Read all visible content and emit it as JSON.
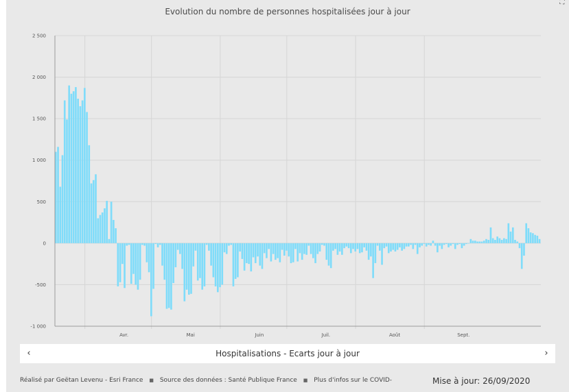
{
  "header": {
    "title": "Evolution du nombre de personnes hospitalisées jour à jour"
  },
  "expand_icon": "expand-icon",
  "nav": {
    "label": "Hospitalisations - Ecarts jour à jour",
    "prev": "‹",
    "next": "›"
  },
  "footer": {
    "author": "Réalisé par Geëtan Levenu - Esri France",
    "source": "Source des données : Santé Publique France",
    "more": "Plus d'infos sur le COVID-",
    "separator": "■"
  },
  "update": "Mise à jour: 26/09/2020",
  "colors": {
    "bar": "#7fdcfa",
    "grid": "#d6d6d6",
    "axis": "#9a9a9a",
    "background": "#e9e9e9"
  },
  "chart_data": {
    "type": "bar",
    "title": "Evolution du nombre de personnes hospitalisées jour à jour",
    "xlabel": "",
    "ylabel": "",
    "ylim": [
      -1000,
      2500
    ],
    "y_ticks": [
      2500,
      2000,
      1500,
      1000,
      500,
      0,
      -500,
      -1000
    ],
    "y_tick_labels": [
      "2 500",
      "2 000",
      "1 500",
      "1 000",
      "500",
      "0",
      "-500",
      "-1 000"
    ],
    "x_month_labels": [
      {
        "label": "Avr.",
        "index": 13
      },
      {
        "label": "Mai",
        "index": 43
      },
      {
        "label": "Juin",
        "index": 74
      },
      {
        "label": "Juil.",
        "index": 104
      },
      {
        "label": "Août",
        "index": 135
      },
      {
        "label": "Sept.",
        "index": 166
      }
    ],
    "series": [
      {
        "name": "Hospitalisations - Ecarts jour à jour",
        "values": [
          1100,
          1160,
          680,
          1060,
          1720,
          1490,
          1900,
          1800,
          1830,
          1880,
          1740,
          1650,
          1720,
          1870,
          1580,
          1180,
          720,
          760,
          830,
          300,
          340,
          370,
          420,
          510,
          50,
          500,
          280,
          180,
          -520,
          -470,
          -250,
          -540,
          -30,
          -20,
          -490,
          -370,
          -500,
          -560,
          -440,
          -20,
          -30,
          -230,
          -350,
          -880,
          -550,
          -10,
          -50,
          -20,
          -270,
          -440,
          -790,
          -780,
          -800,
          -480,
          -290,
          -80,
          -130,
          -310,
          -700,
          -560,
          -620,
          -610,
          -280,
          -90,
          -450,
          -420,
          -560,
          -520,
          -20,
          -90,
          -270,
          -410,
          -520,
          -590,
          -530,
          -500,
          -110,
          -130,
          -30,
          -20,
          -520,
          -430,
          -410,
          -100,
          -190,
          -330,
          -240,
          -250,
          -340,
          -170,
          -240,
          -160,
          -270,
          -310,
          -120,
          -180,
          -70,
          -220,
          -130,
          -200,
          -180,
          -230,
          -80,
          -150,
          -90,
          -160,
          -240,
          -230,
          -70,
          -220,
          -120,
          -200,
          -130,
          -140,
          -30,
          -130,
          -180,
          -240,
          -130,
          -100,
          -20,
          -30,
          -200,
          -270,
          -300,
          -90,
          -70,
          -140,
          -100,
          -140,
          -60,
          -40,
          -60,
          -120,
          -70,
          -100,
          -70,
          -120,
          -110,
          -50,
          -90,
          -200,
          -160,
          -420,
          -240,
          -30,
          -90,
          -260,
          -60,
          -40,
          -120,
          -100,
          -80,
          -100,
          -80,
          -50,
          -90,
          -70,
          -40,
          -40,
          -20,
          -70,
          -20,
          -130,
          -50,
          -30,
          -10,
          -40,
          -20,
          -30,
          30,
          -30,
          -110,
          -30,
          -70,
          -20,
          -10,
          -50,
          -30,
          -10,
          -70,
          -20,
          -10,
          -60,
          -30,
          -10,
          0,
          50,
          30,
          30,
          20,
          20,
          20,
          30,
          50,
          40,
          190,
          60,
          40,
          80,
          60,
          40,
          60,
          50,
          240,
          140,
          190,
          40,
          20,
          -60,
          -310,
          -150,
          240,
          180,
          130,
          120,
          100,
          90,
          50
        ]
      }
    ]
  }
}
